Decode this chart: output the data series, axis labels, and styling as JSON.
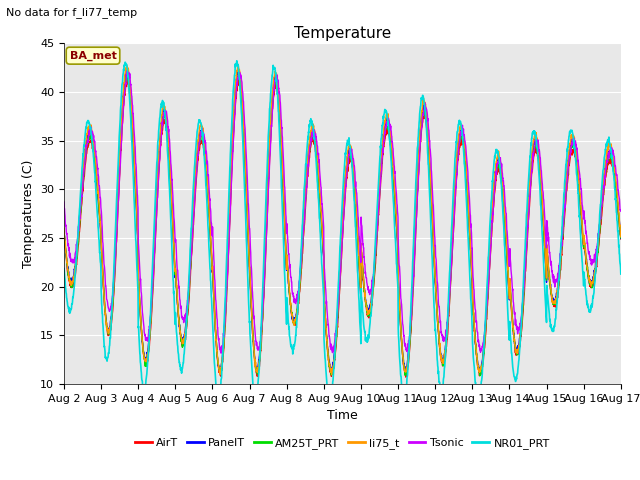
{
  "title": "Temperature",
  "xlabel": "Time",
  "ylabel": "Temperatures (C)",
  "note": "No data for f_li77_temp",
  "legend_label": "BA_met",
  "ylim": [
    10,
    45
  ],
  "xlim_days": [
    2,
    17
  ],
  "x_ticks": [
    2,
    3,
    4,
    5,
    6,
    7,
    8,
    9,
    10,
    11,
    12,
    13,
    14,
    15,
    16,
    17
  ],
  "x_tick_labels": [
    "Aug 2",
    "Aug 3",
    "Aug 4",
    "Aug 5",
    "Aug 6",
    "Aug 7",
    "Aug 8",
    "Aug 9",
    "Aug 10",
    "Aug 11",
    "Aug 12",
    "Aug 13",
    "Aug 14",
    "Aug 15",
    "Aug 16",
    "Aug 17"
  ],
  "yticks": [
    10,
    15,
    20,
    25,
    30,
    35,
    40,
    45
  ],
  "background_color": "#e8e8e8",
  "series_names": [
    "AirT",
    "PanelT",
    "AM25T_PRT",
    "li75_t",
    "Tsonic",
    "NR01_PRT"
  ],
  "series_colors": [
    "#ff0000",
    "#0000ff",
    "#00dd00",
    "#ff9900",
    "#cc00ff",
    "#00dddd"
  ],
  "series_lw": [
    1.0,
    1.0,
    1.0,
    1.0,
    1.0,
    1.2
  ],
  "grid_color": "#ffffff",
  "title_fontsize": 11,
  "axis_label_fontsize": 9,
  "tick_fontsize": 8,
  "peak_temps": [
    35,
    41,
    37,
    35,
    41,
    40.5,
    35,
    33,
    36,
    37.5,
    35,
    32,
    34,
    34,
    33
  ],
  "trough_temps": [
    20,
    15,
    12,
    14,
    11,
    11,
    16,
    11,
    17,
    11,
    12,
    11,
    13,
    18,
    20
  ]
}
